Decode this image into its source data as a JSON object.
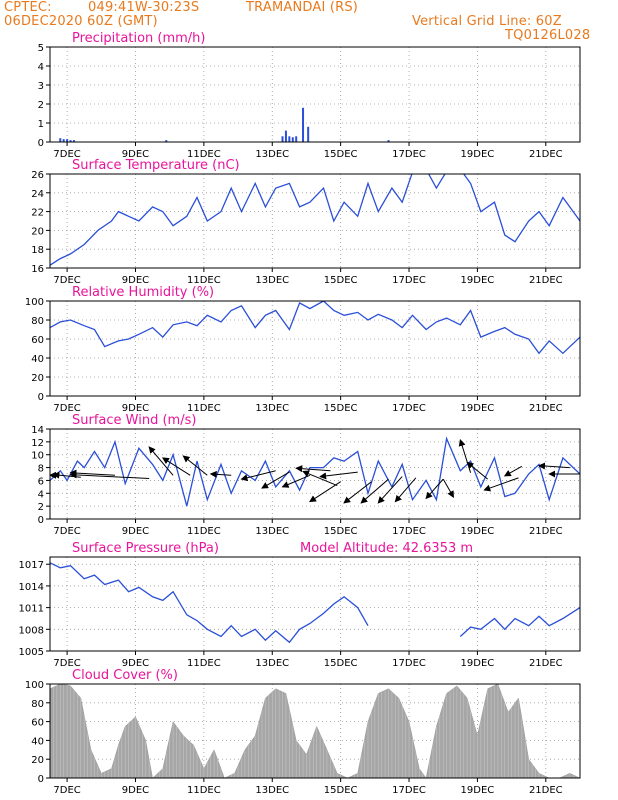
{
  "header": {
    "source": "CPTEC:",
    "coords": "049:41W-30:23S",
    "station": "TRAMANDAI (RS)",
    "run": "06DEC2020 60Z (GMT)",
    "grid_note": "Vertical Grid Line: 60Z",
    "code": "TQ0126L028"
  },
  "colors": {
    "header": "#e87a1e",
    "titles": "#e8149b",
    "line": "#2a4fd8",
    "bars": "#2a4fd8",
    "cloud": "#a6a6a6",
    "arrows": "#000000"
  },
  "chart_data": [
    {
      "type": "bar",
      "title": "Precipitation (mm/h)",
      "x_days": [
        0,
        15.5
      ],
      "ylim": [
        0,
        5
      ],
      "yticks": [
        "0",
        "1",
        "2",
        "3",
        "4",
        "5"
      ],
      "xticks": [
        "7DEC",
        "9DEC",
        "11DEC",
        "13DEC",
        "15DEC",
        "17DEC",
        "19DEC",
        "21DEC"
      ],
      "grid": true,
      "x": [
        0.3,
        0.4,
        0.5,
        0.6,
        0.7,
        3.4,
        6.8,
        6.9,
        7.0,
        7.1,
        7.2,
        7.4,
        7.55,
        9.9
      ],
      "values": [
        0.2,
        0.15,
        0.15,
        0.1,
        0.1,
        0.1,
        0.3,
        0.6,
        0.3,
        0.25,
        0.3,
        1.8,
        0.8,
        0.1
      ]
    },
    {
      "type": "line",
      "title": "Surface Temperature (nC)",
      "ylim": [
        16,
        26
      ],
      "yticks": [
        "16",
        "18",
        "20",
        "22",
        "24",
        "26"
      ],
      "xticks": [
        "7DEC",
        "9DEC",
        "11DEC",
        "13DEC",
        "15DEC",
        "17DEC",
        "19DEC",
        "21DEC"
      ],
      "grid": true,
      "x": [
        0,
        0.3,
        0.6,
        1.0,
        1.4,
        1.8,
        2.0,
        2.3,
        2.6,
        3.0,
        3.3,
        3.6,
        4.0,
        4.3,
        4.6,
        5.0,
        5.3,
        5.6,
        6.0,
        6.3,
        6.6,
        7.0,
        7.3,
        7.6,
        8.0,
        8.3,
        8.6,
        9.0,
        9.3,
        9.6,
        10.0,
        10.3,
        10.6,
        11.0,
        11.3,
        11.6,
        12.0,
        12.3,
        12.6,
        13.0,
        13.3,
        13.6,
        14.0,
        14.3,
        14.6,
        15.0,
        15.5
      ],
      "values": [
        16.3,
        17.0,
        17.5,
        18.5,
        20.0,
        21.0,
        22.0,
        21.5,
        21.0,
        22.5,
        22.0,
        20.5,
        21.5,
        23.5,
        21.0,
        22.0,
        24.5,
        22.0,
        25.0,
        22.5,
        24.5,
        25.0,
        22.5,
        23.0,
        24.5,
        21.0,
        23.0,
        21.5,
        25.0,
        22.0,
        24.5,
        23.0,
        26.2,
        26.5,
        24.5,
        26.3,
        26.5,
        25.0,
        22.0,
        23.0,
        19.5,
        18.8,
        21.0,
        22.0,
        20.5,
        23.5,
        21.0
      ]
    },
    {
      "type": "line",
      "title": "Relative Humidity (%)",
      "ylim": [
        0,
        100
      ],
      "yticks": [
        "0",
        "20",
        "40",
        "60",
        "80",
        "100"
      ],
      "xticks": [
        "7DEC",
        "9DEC",
        "11DEC",
        "13DEC",
        "15DEC",
        "17DEC",
        "19DEC",
        "21DEC"
      ],
      "grid": true,
      "x": [
        0,
        0.3,
        0.6,
        1.0,
        1.3,
        1.6,
        2.0,
        2.3,
        2.6,
        3.0,
        3.3,
        3.6,
        4.0,
        4.3,
        4.6,
        5.0,
        5.3,
        5.6,
        6.0,
        6.3,
        6.6,
        7.0,
        7.3,
        7.6,
        8.0,
        8.3,
        8.6,
        9.0,
        9.3,
        9.6,
        10.0,
        10.3,
        10.6,
        11.0,
        11.3,
        11.6,
        12.0,
        12.3,
        12.6,
        13.0,
        13.3,
        13.6,
        14.0,
        14.3,
        14.6,
        15.0,
        15.5
      ],
      "values": [
        72,
        78,
        80,
        74,
        70,
        52,
        58,
        60,
        65,
        72,
        62,
        75,
        78,
        74,
        85,
        78,
        90,
        95,
        72,
        85,
        90,
        70,
        98,
        92,
        100,
        90,
        85,
        88,
        80,
        86,
        80,
        72,
        85,
        70,
        78,
        82,
        75,
        90,
        62,
        68,
        72,
        65,
        60,
        45,
        58,
        45,
        62
      ]
    },
    {
      "type": "line",
      "title": "Surface Wind (m/s)",
      "ylim": [
        0,
        14
      ],
      "yticks": [
        "0",
        "2",
        "4",
        "6",
        "8",
        "10",
        "12",
        "14"
      ],
      "xticks": [
        "7DEC",
        "9DEC",
        "11DEC",
        "13DEC",
        "15DEC",
        "17DEC",
        "19DEC",
        "21DEC"
      ],
      "grid": true,
      "arrows": true,
      "x": [
        0,
        0.3,
        0.5,
        0.8,
        1.0,
        1.3,
        1.6,
        1.9,
        2.2,
        2.6,
        3.0,
        3.3,
        3.6,
        4.0,
        4.3,
        4.6,
        5.0,
        5.3,
        5.6,
        6.0,
        6.3,
        6.6,
        7.0,
        7.3,
        7.6,
        8.0,
        8.3,
        8.6,
        9.0,
        9.3,
        9.6,
        10.0,
        10.3,
        10.6,
        11.0,
        11.3,
        11.6,
        12.0,
        12.3,
        12.6,
        13.0,
        13.3,
        13.6,
        14.0,
        14.3,
        14.6,
        15.0,
        15.5
      ],
      "values": [
        6.0,
        7.5,
        6.0,
        9.0,
        8.0,
        10.5,
        8.0,
        12.0,
        5.5,
        11.0,
        8.5,
        6.0,
        10.0,
        2.0,
        9.0,
        3.0,
        8.5,
        4.0,
        7.5,
        6.0,
        9.0,
        5.0,
        7.5,
        4.5,
        8.0,
        8.0,
        9.5,
        9.0,
        10.5,
        4.0,
        9.0,
        5.0,
        8.5,
        3.0,
        6.0,
        3.0,
        12.5,
        7.5,
        9.0,
        5.0,
        9.5,
        3.5,
        4.0,
        7.0,
        8.5,
        3.0,
        9.5,
        7.0
      ]
    },
    {
      "type": "line",
      "title": "Surface Pressure (hPa)",
      "annotation": "Model Altitude: 42.6353 m",
      "ylim": [
        1005,
        1018
      ],
      "yticks": [
        "1005",
        "1008",
        "1011",
        "1014",
        "1017"
      ],
      "ytick_values": [
        1005,
        1008,
        1011,
        1014,
        1017
      ],
      "xticks": [
        "7DEC",
        "9DEC",
        "11DEC",
        "13DEC",
        "15DEC",
        "17DEC",
        "19DEC",
        "21DEC"
      ],
      "grid": true,
      "x": [
        0,
        0.3,
        0.6,
        1.0,
        1.3,
        1.6,
        2.0,
        2.3,
        2.6,
        3.0,
        3.3,
        3.6,
        4.0,
        4.3,
        4.6,
        5.0,
        5.3,
        5.6,
        6.0,
        6.3,
        6.6,
        7.0,
        7.3,
        7.6,
        8.0,
        8.3,
        8.6,
        9.0,
        9.3,
        12.0,
        12.3,
        12.6,
        13.0,
        13.3,
        13.6,
        14.0,
        14.3,
        14.6,
        15.0,
        15.5
      ],
      "values": [
        1017.2,
        1016.5,
        1016.8,
        1015.0,
        1015.5,
        1014.2,
        1014.8,
        1013.2,
        1013.8,
        1012.5,
        1012.0,
        1013.2,
        1010.0,
        1009.2,
        1008.0,
        1007.0,
        1008.5,
        1007.0,
        1008.0,
        1006.5,
        1007.8,
        1006.2,
        1008.0,
        1008.8,
        1010.2,
        1011.5,
        1012.5,
        1011.0,
        1008.5,
        1007.0,
        1008.3,
        1008.0,
        1009.5,
        1008.0,
        1009.5,
        1008.5,
        1009.8,
        1008.5,
        1009.5,
        1011.0
      ]
    },
    {
      "type": "area",
      "title": "Cloud Cover (%)",
      "ylim": [
        0,
        100
      ],
      "yticks": [
        "0",
        "20",
        "40",
        "60",
        "80",
        "100"
      ],
      "xticks": [
        "7DEC",
        "9DEC",
        "11DEC",
        "13DEC",
        "15DEC",
        "17DEC",
        "19DEC",
        "21DEC"
      ],
      "grid": true,
      "x": [
        0,
        0.3,
        0.6,
        0.9,
        1.2,
        1.5,
        1.8,
        2.0,
        2.2,
        2.5,
        2.8,
        3.0,
        3.3,
        3.6,
        3.9,
        4.2,
        4.5,
        4.8,
        5.1,
        5.4,
        5.7,
        6.0,
        6.3,
        6.6,
        6.9,
        7.2,
        7.5,
        7.8,
        8.1,
        8.4,
        8.7,
        9.0,
        9.3,
        9.6,
        9.9,
        10.2,
        10.5,
        10.8,
        11.0,
        11.3,
        11.6,
        11.9,
        12.2,
        12.5,
        12.8,
        13.1,
        13.4,
        13.7,
        14.0,
        14.3,
        14.6,
        14.9,
        15.2,
        15.5
      ],
      "values": [
        95,
        100,
        98,
        85,
        30,
        5,
        10,
        35,
        55,
        65,
        40,
        0,
        10,
        60,
        45,
        35,
        10,
        30,
        0,
        5,
        30,
        45,
        85,
        95,
        90,
        40,
        25,
        55,
        30,
        5,
        0,
        5,
        60,
        90,
        95,
        85,
        60,
        10,
        0,
        55,
        90,
        98,
        85,
        45,
        95,
        100,
        70,
        85,
        20,
        5,
        0,
        0,
        5,
        0
      ]
    }
  ]
}
